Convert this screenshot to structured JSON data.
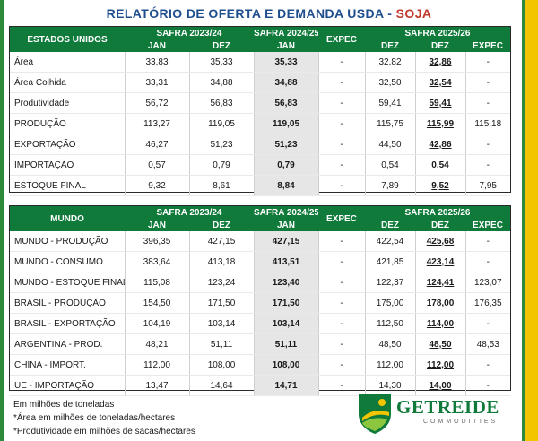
{
  "title": {
    "part1": "RELATÓRIO DE OFERTA E DEMANDA USDA",
    "sep": " - ",
    "part2": "SOJA"
  },
  "columns": {
    "safra1": "SAFRA 2023/24",
    "safra2": "SAFRA 2024/25",
    "safra3": "SAFRA 2025/26",
    "jan": "JAN",
    "dez": "DEZ",
    "expec": "EXPEC"
  },
  "table_us": {
    "heading": "ESTADOS UNIDOS",
    "rows": [
      {
        "label": "Área",
        "v": [
          "33,83",
          "35,33",
          "35,33",
          "-",
          "32,82",
          "32,86",
          "-"
        ]
      },
      {
        "label": "Área Colhida",
        "v": [
          "33,31",
          "34,88",
          "34,88",
          "-",
          "32,50",
          "32,54",
          "-"
        ]
      },
      {
        "label": "Produtividade",
        "v": [
          "56,72",
          "56,83",
          "56,83",
          "-",
          "59,41",
          "59,41",
          "-"
        ]
      },
      {
        "label": "PRODUÇÃO",
        "v": [
          "113,27",
          "119,05",
          "119,05",
          "-",
          "115,75",
          "115,99",
          "115,18"
        ]
      },
      {
        "label": "EXPORTAÇÃO",
        "v": [
          "46,27",
          "51,23",
          "51,23",
          "-",
          "44,50",
          "42,86",
          "-"
        ]
      },
      {
        "label": "IMPORTAÇÃO",
        "v": [
          "0,57",
          "0,79",
          "0,79",
          "-",
          "0,54",
          "0,54",
          "-"
        ]
      },
      {
        "label": "ESTOQUE FINAL",
        "v": [
          "9,32",
          "8,61",
          "8,84",
          "-",
          "7,89",
          "9,52",
          "7,95"
        ]
      }
    ]
  },
  "table_world": {
    "heading": "MUNDO",
    "rows": [
      {
        "label": "MUNDO - PRODUÇÃO",
        "v": [
          "396,35",
          "427,15",
          "427,15",
          "-",
          "422,54",
          "425,68",
          "-"
        ]
      },
      {
        "label": "MUNDO - CONSUMO",
        "v": [
          "383,64",
          "413,18",
          "413,51",
          "-",
          "421,85",
          "423,14",
          "-"
        ]
      },
      {
        "label": "MUNDO - ESTOQUE FINAL",
        "v": [
          "115,08",
          "123,24",
          "123,40",
          "-",
          "122,37",
          "124,41",
          "123,07"
        ]
      },
      {
        "label": "BRASIL - PRODUÇÃO",
        "v": [
          "154,50",
          "171,50",
          "171,50",
          "-",
          "175,00",
          "178,00",
          "176,35"
        ]
      },
      {
        "label": "BRASIL - EXPORTAÇÃO",
        "v": [
          "104,19",
          "103,14",
          "103,14",
          "-",
          "112,50",
          "114,00",
          "-"
        ]
      },
      {
        "label": "ARGENTINA - PROD.",
        "v": [
          "48,21",
          "51,11",
          "51,11",
          "-",
          "48,50",
          "48,50",
          "48,53"
        ]
      },
      {
        "label": "CHINA - IMPORT.",
        "v": [
          "112,00",
          "108,00",
          "108,00",
          "-",
          "112,00",
          "112,00",
          "-"
        ]
      },
      {
        "label": "UE - IMPORTAÇÃO",
        "v": [
          "13,47",
          "14,64",
          "14,71",
          "-",
          "14,30",
          "14,00",
          "-"
        ]
      }
    ]
  },
  "notes": [
    "Em milhões de toneladas",
    "*Área em milhões de toneladas/hectares",
    "*Produtividade em milhões de sacas/hectares"
  ],
  "logo": {
    "name": "GETREIDE",
    "sub": "COMMODITIES",
    "brand_color": "#0f7a3a"
  },
  "colors": {
    "header_green": "#0f7a3a",
    "highlight_gray": "#e6e6e6",
    "title_blue": "#1f4e8f",
    "accent_red": "#c0392b",
    "stripe_yellow": "#f2c500"
  }
}
